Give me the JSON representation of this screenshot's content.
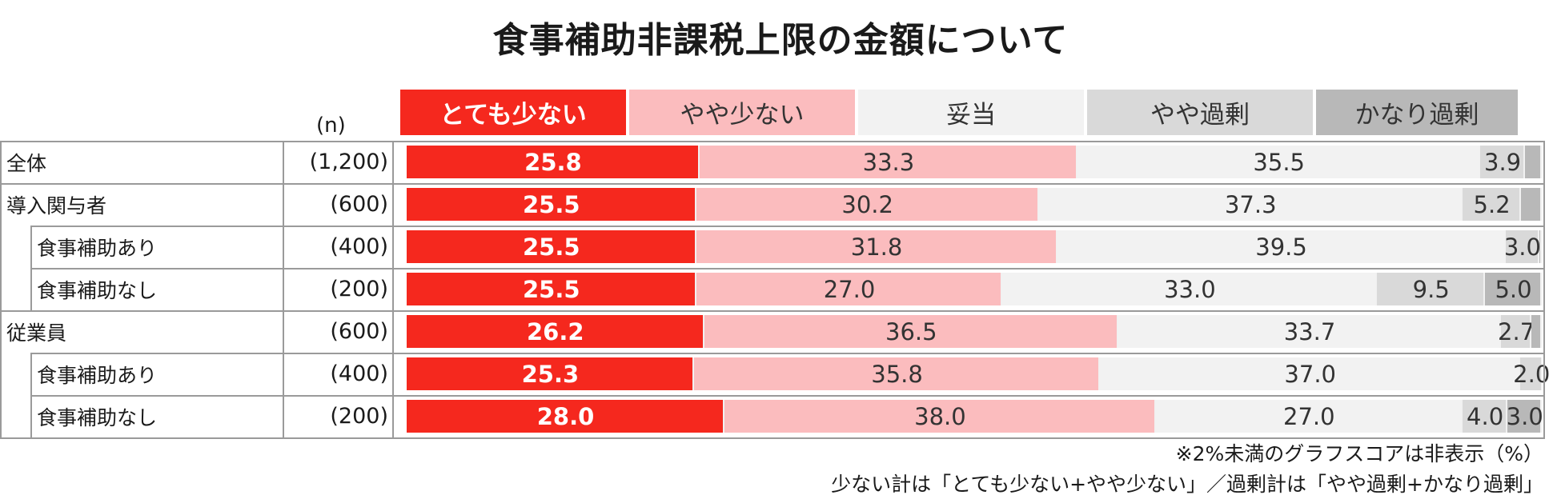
{
  "title": "食事補助非課税上限の金額について",
  "n_header": "(n)",
  "chart_data": {
    "type": "bar",
    "orientation": "horizontal",
    "stacked": true,
    "percent_scale": [
      0,
      100
    ],
    "series": [
      {
        "name": "とても少ない",
        "color": "#f5281e",
        "label_color": "#ffffff",
        "values": [
          25.8,
          25.5,
          25.5,
          25.5,
          26.2,
          25.3,
          28.0
        ]
      },
      {
        "name": "やや少ない",
        "color": "#fbbcbe",
        "label_color": "#333333",
        "values": [
          33.3,
          30.2,
          31.8,
          27.0,
          36.5,
          35.8,
          38.0
        ]
      },
      {
        "name": "妥当",
        "color": "#f2f2f2",
        "label_color": "#333333",
        "values": [
          35.5,
          37.3,
          39.5,
          33.0,
          33.7,
          37.0,
          27.0
        ]
      },
      {
        "name": "やや過剰",
        "color": "#d9d9d9",
        "label_color": "#333333",
        "values": [
          3.9,
          5.2,
          3.0,
          9.5,
          2.7,
          2.0,
          4.0
        ]
      },
      {
        "name": "かなり過剰",
        "color": "#b8b8b8",
        "label_color": "#333333",
        "values": [
          1.5,
          1.8,
          0.2,
          5.0,
          0.9,
          0.1,
          3.0
        ]
      }
    ],
    "categories": [
      "全体",
      "導入関与者",
      "食事補助あり",
      "食事補助なし",
      "従業員",
      "食事補助あり",
      "食事補助なし"
    ],
    "n": [
      "(1,200)",
      "(600)",
      "(400)",
      "(200)",
      "(600)",
      "(400)",
      "(200)"
    ],
    "indent": [
      false,
      false,
      true,
      true,
      false,
      true,
      true
    ],
    "min_label_value": 2.0
  },
  "notes": [
    "※2%未満のグラフスコアは非表示（%）",
    "少ない計は「とても少ない+やや少ない」／過剰計は「やや過剰+かなり過剰」"
  ]
}
